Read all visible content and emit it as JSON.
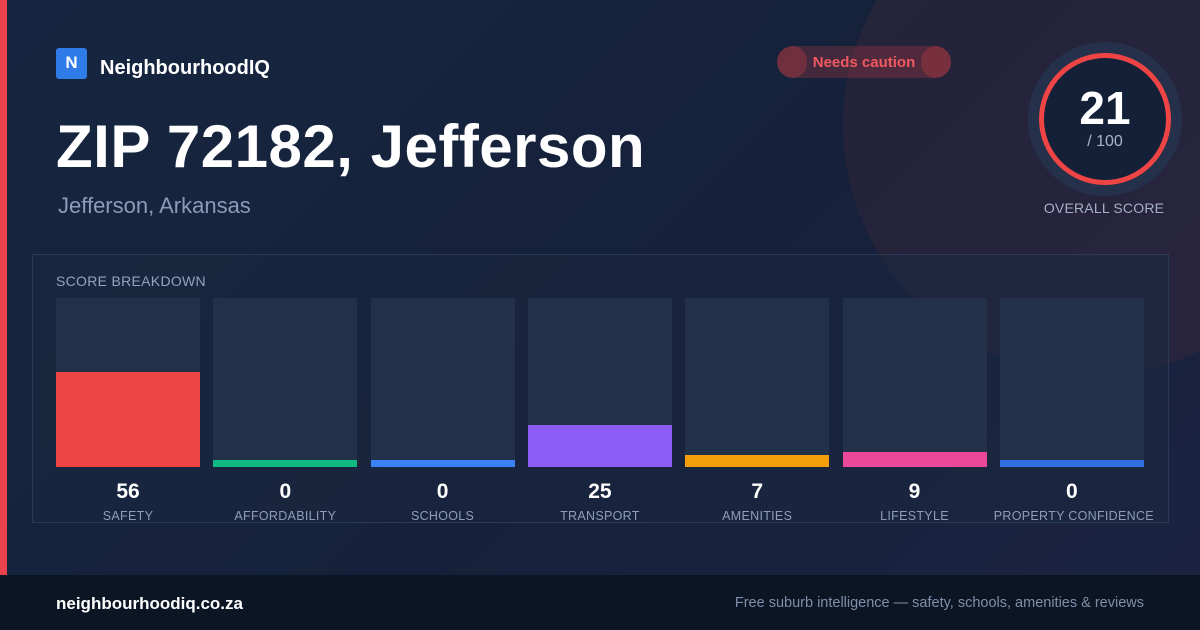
{
  "brand": {
    "logo_letter": "N",
    "name": "NeighbourhoodIQ"
  },
  "status_badge": {
    "label": "Needs caution",
    "color": "#ef4444"
  },
  "header": {
    "title": "ZIP 72182, Jefferson",
    "subtitle": "Jefferson, Arkansas"
  },
  "overall_score": {
    "value": "21",
    "max_label": "/ 100",
    "caption": "OVERALL SCORE",
    "score": 21,
    "max": 100,
    "ring_color": "#ef4444"
  },
  "chart_data": {
    "type": "bar",
    "title": "SCORE BREAKDOWN",
    "categories": [
      "SAFETY",
      "AFFORDABILITY",
      "SCHOOLS",
      "TRANSPORT",
      "AMENITIES",
      "LIFESTYLE",
      "PROPERTY CONFIDENCE"
    ],
    "values": [
      56,
      0,
      0,
      25,
      7,
      9,
      0
    ],
    "colors": [
      "#ef4444",
      "#10b981",
      "#3b82f6",
      "#8b5cf6",
      "#f59e0b",
      "#ec4899",
      "#2f6fe0"
    ],
    "ylim": [
      0,
      100
    ],
    "grid": false
  },
  "footer": {
    "domain": "neighbourhoodiq.co.za",
    "tagline": "Free suburb intelligence — safety, schools, amenities & reviews"
  }
}
